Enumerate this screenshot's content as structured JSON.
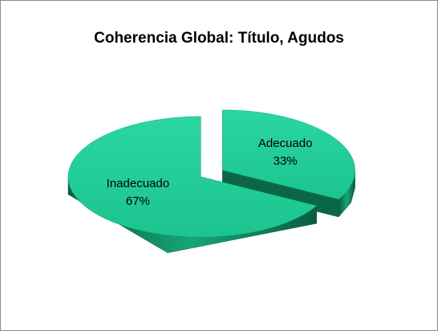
{
  "chart_data": {
    "type": "pie",
    "title": "Coherencia Global: Título, Agudos",
    "categories": [
      "Adecuado",
      "Inadecuado"
    ],
    "values": [
      33,
      67
    ],
    "value_labels": [
      "33%",
      "67%"
    ],
    "color": "#22cc96",
    "explode": [
      true,
      false
    ],
    "three_d": true
  }
}
